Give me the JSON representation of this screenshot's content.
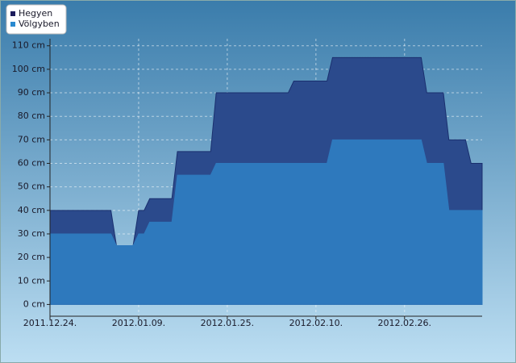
{
  "chart_data": {
    "type": "area",
    "x": [
      "2011-12-24",
      "2012-01-04",
      "2012-01-05",
      "2012-01-08",
      "2012-01-09",
      "2012-01-10",
      "2012-01-11",
      "2012-01-15",
      "2012-01-16",
      "2012-01-22",
      "2012-01-23",
      "2012-02-05",
      "2012-02-06",
      "2012-02-12",
      "2012-02-13",
      "2012-02-29",
      "2012-03-01",
      "2012-03-04",
      "2012-03-05",
      "2012-03-08",
      "2012-03-09",
      "2012-03-11"
    ],
    "series": [
      {
        "name": "Hegyen",
        "color": "#2b4a8c",
        "legend_color": "#1c1c5c",
        "values": [
          40,
          40,
          25,
          25,
          40,
          40,
          45,
          45,
          65,
          65,
          90,
          90,
          95,
          95,
          105,
          105,
          90,
          90,
          70,
          70,
          60,
          60
        ]
      },
      {
        "name": "Völgyben",
        "color": "#2e79bd",
        "legend_color": "#2a8ad0",
        "values": [
          30,
          30,
          25,
          25,
          30,
          30,
          35,
          35,
          55,
          55,
          60,
          60,
          60,
          60,
          70,
          70,
          60,
          60,
          40,
          40,
          40,
          40
        ]
      }
    ],
    "xlim": [
      "2011-12-24",
      "2012-03-11"
    ],
    "xticks": [
      {
        "value": "2011-12-24",
        "label": "2011.12.24."
      },
      {
        "value": "2012-01-09",
        "label": "2012.01.09."
      },
      {
        "value": "2012-01-25",
        "label": "2012.01.25."
      },
      {
        "value": "2012-02-10",
        "label": "2012.02.10."
      },
      {
        "value": "2012-02-26",
        "label": "2012.02.26."
      }
    ],
    "ylim": [
      -5,
      113
    ],
    "yticks": [
      {
        "value": 0,
        "label": "0 cm"
      },
      {
        "value": 10,
        "label": "10 cm"
      },
      {
        "value": 20,
        "label": "20 cm"
      },
      {
        "value": 30,
        "label": "30 cm"
      },
      {
        "value": 40,
        "label": "40 cm"
      },
      {
        "value": 50,
        "label": "50 cm"
      },
      {
        "value": 60,
        "label": "60 cm"
      },
      {
        "value": 70,
        "label": "70 cm"
      },
      {
        "value": 80,
        "label": "80 cm"
      },
      {
        "value": 90,
        "label": "90 cm"
      },
      {
        "value": 100,
        "label": "100 cm"
      },
      {
        "value": 110,
        "label": "110 cm"
      }
    ],
    "grid": true,
    "legend": "top-left"
  }
}
